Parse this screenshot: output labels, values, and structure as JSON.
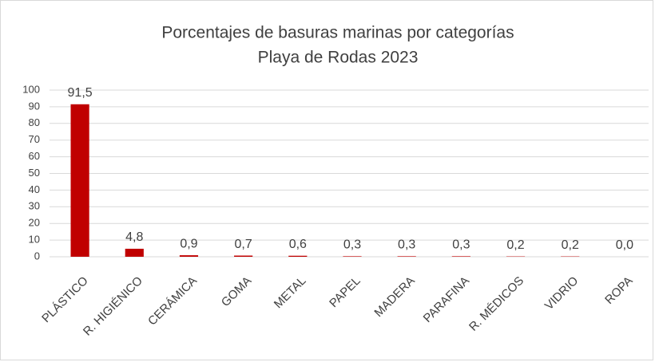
{
  "chart_data": {
    "type": "bar",
    "title": "Porcentajes de basuras marinas por categorías",
    "subtitle": "Playa de Rodas 2023",
    "categories": [
      "PLÁSTICO",
      "R. HIGIÉNICO",
      "CERÁMICA",
      "GOMA",
      "METAL",
      "PAPEL",
      "MADERA",
      "PARAFINA",
      "R. MÉDICOS",
      "VIDRIO",
      "ROPA"
    ],
    "values": [
      91.5,
      4.8,
      0.9,
      0.7,
      0.6,
      0.3,
      0.3,
      0.3,
      0.2,
      0.2,
      0.0
    ],
    "value_labels": [
      "91,5",
      "4,8",
      "0,9",
      "0,7",
      "0,6",
      "0,3",
      "0,3",
      "0,3",
      "0,2",
      "0,2",
      "0,0"
    ],
    "color": "#c00000",
    "ylim": [
      0,
      100
    ],
    "yticks": [
      0,
      10,
      20,
      30,
      40,
      50,
      60,
      70,
      80,
      90,
      100
    ],
    "grid": true
  }
}
